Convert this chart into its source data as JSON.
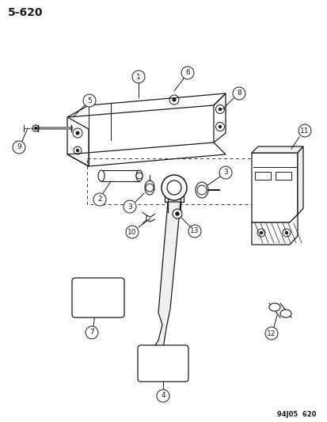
{
  "title": "5-620",
  "footer": "94J05  620",
  "background_color": "#ffffff",
  "line_color": "#1a1a1a",
  "figsize": [
    4.14,
    5.33
  ],
  "dpi": 100
}
